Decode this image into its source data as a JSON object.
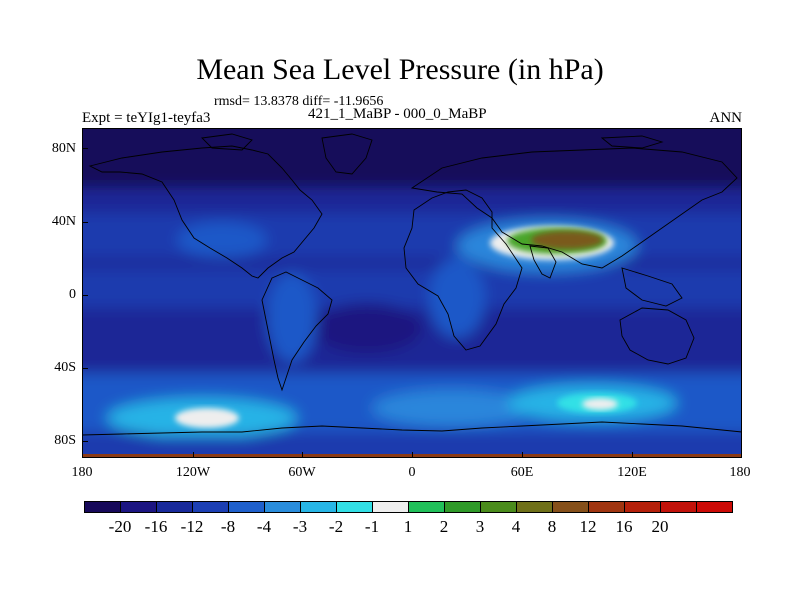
{
  "header": {
    "title": "Mean Sea Level Pressure (in hPa)",
    "stats": "rmsd= 13.8378 diff= -11.9656",
    "expt_label": "Expt = teYIg1-teyfa3",
    "period_label": "421_1_MaBP - 000_0_MaBP",
    "season": "ANN"
  },
  "map": {
    "lat_labels": [
      "80N",
      "40N",
      "0",
      "40S",
      "80S"
    ],
    "lon_labels": [
      "180",
      "120W",
      "60W",
      "0",
      "60E",
      "120E",
      "180"
    ],
    "fill_colors": {
      "minus20": "#160a5a",
      "minus16": "#1b1580",
      "minus12": "#1a2696",
      "minus8": "#1d3aae",
      "minus4": "#1f59c8",
      "minus3": "#2b86db",
      "minus2": "#25b3e6",
      "minus1": "#30e0e6",
      "near0": "#eeeeee",
      "plus1": "#22c16a",
      "plus2": "#4aa52a",
      "plus3": "#5b8a1c",
      "plus4": "#7a5a1c",
      "plus8": "#8b3a14"
    }
  },
  "colorbar": {
    "colors": [
      "#17095a",
      "#1c1582",
      "#192a9b",
      "#1c3fb4",
      "#1f60cc",
      "#2a8ddc",
      "#28b6e6",
      "#32dfe5",
      "#eeeeee",
      "#21c05a",
      "#2f9a29",
      "#4b8c1c",
      "#6f7019",
      "#86501a",
      "#a03510",
      "#b5200a",
      "#c2120a",
      "#cc0a06"
    ],
    "labels": [
      "-20",
      "-16",
      "-12",
      "-8",
      "-4",
      "-3",
      "-2",
      "-1",
      "1",
      "2",
      "3",
      "4",
      "8",
      "12",
      "16",
      "20"
    ]
  }
}
